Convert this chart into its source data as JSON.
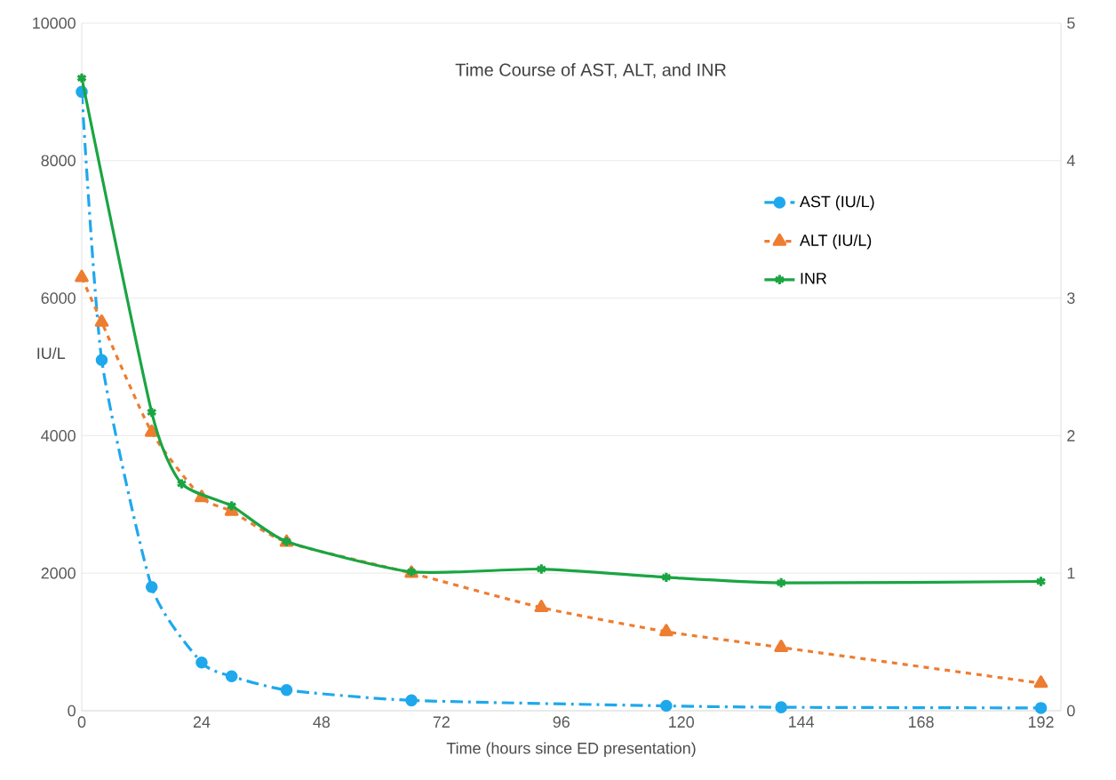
{
  "chart_data": {
    "type": "line",
    "title": "Time Course of AST, ALT, and INR",
    "xlabel": "Time (hours since ED presentation)",
    "ylabel": "IU/L",
    "xlim": [
      0,
      196
    ],
    "xticks": [
      0,
      24,
      48,
      72,
      96,
      120,
      144,
      168,
      192
    ],
    "ylim": [
      0,
      10000
    ],
    "yticks": [
      0,
      2000,
      4000,
      6000,
      8000,
      10000
    ],
    "y2lim": [
      0,
      5
    ],
    "y2ticks": [
      0,
      1,
      2,
      3,
      4,
      5
    ],
    "grid": "y",
    "legend": "right",
    "series": [
      {
        "name": "AST (IU/L)",
        "color": "#1fa8ec",
        "marker": "circle",
        "line_style": "dashdot",
        "x": [
          0,
          4,
          14,
          24,
          30,
          41,
          66,
          117,
          140,
          192
        ],
        "values": [
          9000,
          5100,
          1800,
          700,
          500,
          300,
          150,
          70,
          50,
          40
        ]
      },
      {
        "name": "ALT (IU/L)",
        "color": "#ed7d31",
        "marker": "triangle",
        "line_style": "dashed",
        "x": [
          0,
          4,
          14,
          24,
          30,
          41,
          66,
          92,
          117,
          140,
          192
        ],
        "values": [
          6300,
          5650,
          4050,
          3100,
          2900,
          2450,
          2000,
          1500,
          1150,
          920,
          400
        ]
      },
      {
        "name": "INR",
        "color": "#1aa542",
        "marker": "cross",
        "line_style": "solid",
        "axis": "y2",
        "x": [
          0,
          14,
          20,
          30,
          41,
          66,
          92,
          117,
          140,
          192
        ],
        "values": [
          4.6,
          2.17,
          1.65,
          1.49,
          1.23,
          1.01,
          1.03,
          0.97,
          0.93,
          0.94
        ]
      }
    ]
  }
}
